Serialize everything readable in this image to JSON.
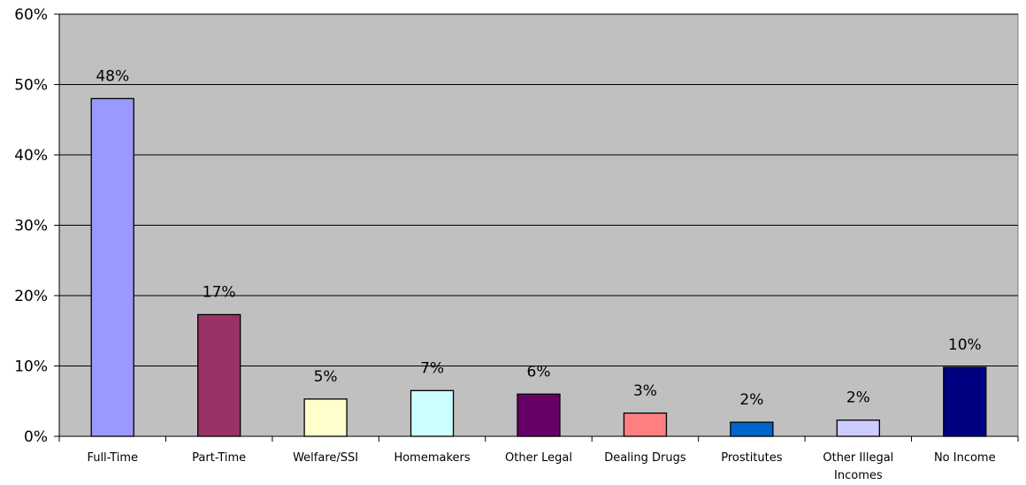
{
  "chart_data": {
    "type": "bar",
    "title": "",
    "xlabel": "",
    "ylabel": "",
    "ylim": [
      0,
      60
    ],
    "yticks": [
      0,
      10,
      20,
      30,
      40,
      50,
      60
    ],
    "ytick_labels": [
      "0%",
      "10%",
      "20%",
      "30%",
      "40%",
      "50%",
      "60%"
    ],
    "grid": true,
    "legend": "none",
    "plot_background": "#c0c0c0",
    "categories": [
      [
        "Full-Time"
      ],
      [
        "Part-Time"
      ],
      [
        "Welfare/SSI"
      ],
      [
        "Homemakers"
      ],
      [
        "Other Legal"
      ],
      [
        "Dealing Drugs"
      ],
      [
        "Prostitutes"
      ],
      [
        "Other Illegal",
        "Incomes"
      ],
      [
        "No Income"
      ]
    ],
    "values": [
      48,
      17.3,
      5.3,
      6.5,
      6,
      3.3,
      2,
      2.3,
      9.8
    ],
    "data_labels": [
      "48%",
      "17%",
      "5%",
      "7%",
      "6%",
      "3%",
      "2%",
      "2%",
      "10%"
    ],
    "colors": [
      "#9999ff",
      "#993366",
      "#ffffcc",
      "#ccffff",
      "#660066",
      "#ff8080",
      "#0066cc",
      "#ccccff",
      "#000080"
    ]
  }
}
